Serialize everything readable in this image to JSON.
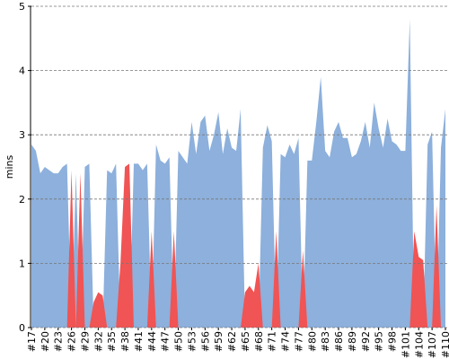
{
  "chart_data": {
    "type": "area",
    "y_label": "mins",
    "categories": [
      "#17",
      null,
      null,
      "#20",
      null,
      null,
      "#23",
      null,
      null,
      "#26",
      null,
      null,
      "#29",
      null,
      null,
      "#32",
      null,
      null,
      "#35",
      null,
      null,
      "#38",
      null,
      null,
      "#41",
      null,
      null,
      "#44",
      null,
      null,
      "#47",
      null,
      null,
      "#50",
      null,
      null,
      "#53",
      null,
      null,
      "#56",
      null,
      null,
      "#59",
      null,
      null,
      "#62",
      null,
      null,
      "#65",
      null,
      null,
      "#68",
      null,
      null,
      "#71",
      null,
      null,
      "#74",
      null,
      null,
      "#77",
      null,
      null,
      "#80",
      null,
      null,
      "#83",
      null,
      null,
      "#86",
      null,
      null,
      "#89",
      null,
      null,
      "#92",
      null,
      null,
      "#95",
      null,
      null,
      "#98",
      null,
      null,
      "#101",
      null,
      null,
      "#104",
      null,
      null,
      "#107",
      null,
      null,
      "#110"
    ],
    "series": [
      {
        "color": "#8db0dc",
        "values": [
          2.85,
          2.75,
          2.4,
          2.5,
          2.45,
          2.4,
          2.4,
          2.5,
          2.55,
          0,
          2.4,
          0,
          2.5,
          2.55,
          0,
          0,
          0,
          2.45,
          2.4,
          2.55,
          0,
          0,
          0,
          2.55,
          2.55,
          2.45,
          2.55,
          0,
          2.85,
          2.6,
          2.55,
          2.65,
          0,
          2.75,
          2.65,
          2.55,
          3.2,
          2.7,
          3.2,
          3.3,
          2.75,
          3.0,
          3.35,
          2.7,
          3.1,
          2.8,
          2.75,
          3.4,
          0,
          0,
          0,
          0,
          2.8,
          3.15,
          2.9,
          0,
          2.7,
          2.65,
          2.85,
          2.7,
          2.95,
          0,
          2.6,
          2.6,
          3.2,
          3.9,
          2.75,
          2.65,
          3.05,
          3.2,
          2.95,
          2.95,
          2.65,
          2.7,
          2.9,
          3.2,
          2.8,
          3.5,
          3.1,
          2.8,
          3.25,
          2.9,
          2.85,
          2.75,
          2.75,
          4.8,
          0,
          0,
          0,
          2.85,
          3.05,
          0,
          2.8,
          3.4
        ]
      },
      {
        "color": "#f05454",
        "values": [
          0,
          0,
          0,
          0,
          0,
          0,
          0,
          0,
          0,
          2.45,
          0,
          2.4,
          0,
          0,
          0.4,
          0.55,
          0.5,
          0,
          0,
          0,
          1.0,
          2.5,
          2.55,
          0,
          0,
          0,
          0,
          1.5,
          0,
          0,
          0,
          0,
          1.5,
          0,
          0,
          0,
          0,
          0,
          0,
          0,
          0,
          0,
          0,
          0,
          0,
          0,
          0,
          0,
          0.55,
          0.65,
          0.55,
          1.0,
          0,
          0,
          0,
          1.5,
          0,
          0,
          0,
          0,
          0,
          1.2,
          0,
          0,
          0,
          0,
          0,
          0,
          0,
          0,
          0,
          0,
          0,
          0,
          0,
          0,
          0,
          0,
          0,
          0,
          0,
          0,
          0,
          0,
          0,
          0,
          1.5,
          1.1,
          1.05,
          0,
          0,
          1.9,
          0,
          0
        ]
      }
    ],
    "ylim": [
      0,
      5
    ],
    "yticks": [
      0,
      1,
      2,
      3,
      4,
      5
    ],
    "grid": true
  }
}
